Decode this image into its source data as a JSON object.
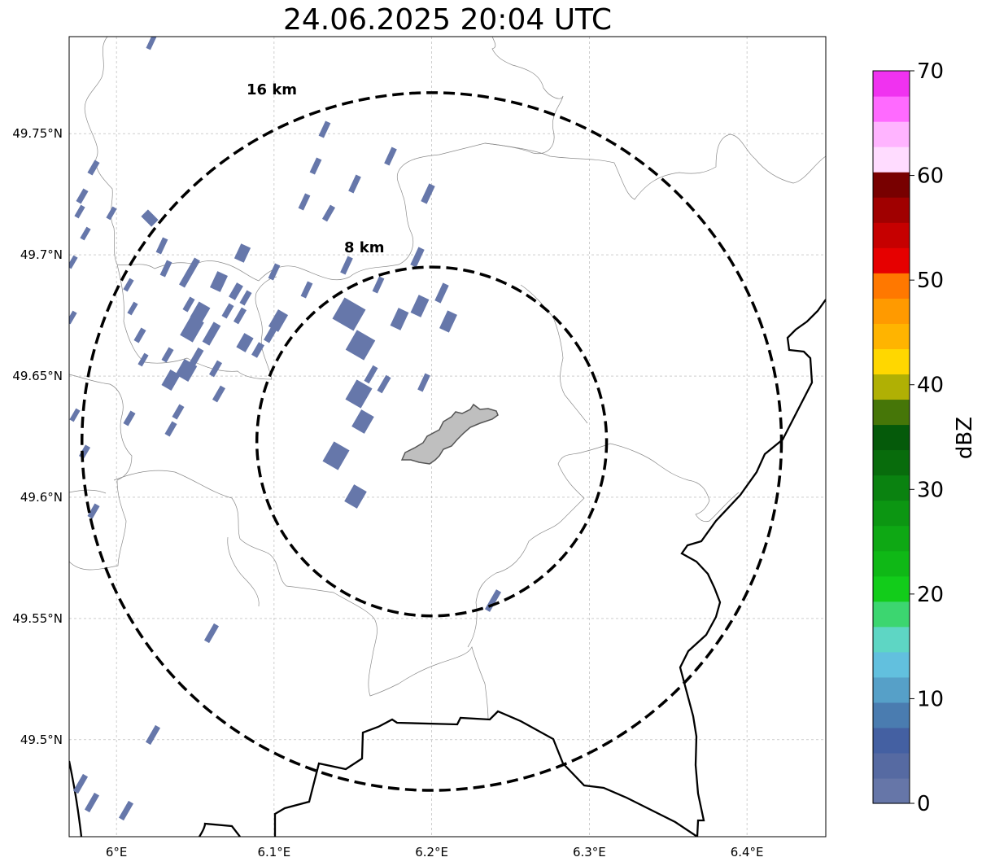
{
  "title": "24.06.2025 20:04 UTC",
  "map": {
    "lon_range": [
      5.97,
      6.45
    ],
    "lat_range": [
      49.46,
      49.79
    ],
    "center": {
      "lon": 6.2,
      "lat": 49.623
    },
    "grid": true,
    "lon_ticks": [
      {
        "value": 6.0,
        "label": "6°E"
      },
      {
        "value": 6.1,
        "label": "6.1°E"
      },
      {
        "value": 6.2,
        "label": "6.2°E"
      },
      {
        "value": 6.3,
        "label": "6.3°E"
      },
      {
        "value": 6.4,
        "label": "6.4°E"
      }
    ],
    "lat_ticks": [
      {
        "value": 49.5,
        "label": "49.5°N"
      },
      {
        "value": 49.55,
        "label": "49.55°N"
      },
      {
        "value": 49.6,
        "label": "49.6°N"
      },
      {
        "value": 49.65,
        "label": "49.65°N"
      },
      {
        "value": 49.7,
        "label": "49.7°N"
      },
      {
        "value": 49.75,
        "label": "49.75°N"
      }
    ],
    "rings": [
      {
        "radius_km": 8,
        "label": "8 km"
      },
      {
        "radius_km": 16,
        "label": "16 km"
      }
    ],
    "reflectivity_color": "#6677aa",
    "city_fill": "#bfbfbf"
  },
  "colorbar": {
    "label": "dBZ",
    "min": 0,
    "max": 70,
    "ticks": [
      {
        "value": 0,
        "label": "0"
      },
      {
        "value": 10,
        "label": "10"
      },
      {
        "value": 20,
        "label": "20"
      },
      {
        "value": 30,
        "label": "30"
      },
      {
        "value": 40,
        "label": "40"
      },
      {
        "value": 50,
        "label": "50"
      },
      {
        "value": 60,
        "label": "60"
      },
      {
        "value": 70,
        "label": "70"
      }
    ],
    "colors": [
      "#6676a8",
      "#566aa2",
      "#4460a2",
      "#4a7cb0",
      "#56a0c8",
      "#62c0de",
      "#5ed6c4",
      "#3cd670",
      "#12cc1a",
      "#0fb816",
      "#0ea814",
      "#0c9612",
      "#0a8210",
      "#086c0c",
      "#055a0a",
      "#467608",
      "#b0b004",
      "#ffd700",
      "#ffb400",
      "#ff9a00",
      "#ff7800",
      "#e60000",
      "#c60000",
      "#a00000",
      "#780000",
      "#ffdcff",
      "#ffb4ff",
      "#ff6aff",
      "#f032f0"
    ]
  }
}
